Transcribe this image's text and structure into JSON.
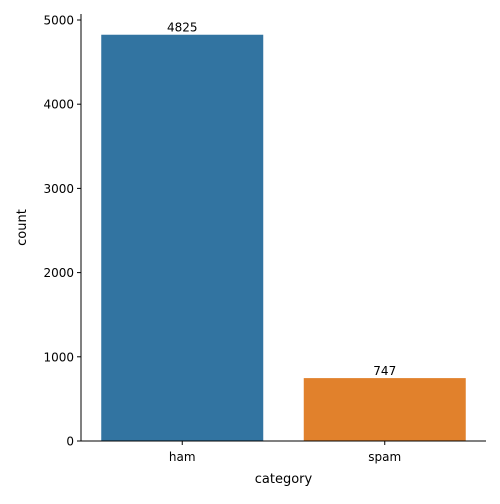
{
  "chart_data": {
    "type": "bar",
    "categories": [
      "ham",
      "spam"
    ],
    "values": [
      4825,
      747
    ],
    "data_labels": [
      "4825",
      "747"
    ],
    "colors": [
      "#3274a1",
      "#e1812c"
    ],
    "xlabel": "category",
    "ylabel": "count",
    "ylim": [
      0,
      5000
    ],
    "yticks": [
      0,
      1000,
      2000,
      3000,
      4000,
      5000
    ],
    "grid": false,
    "legend": "none"
  }
}
